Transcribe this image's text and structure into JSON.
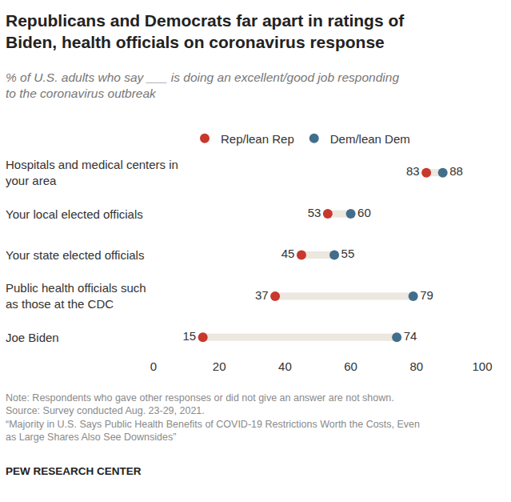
{
  "chart_data": {
    "type": "dot",
    "orientation": "horizontal",
    "title": "Republicans and Democrats far apart in ratings of\nBiden, health officials on coronavirus response",
    "subtitle": "% of U.S. adults who say ___ is doing an excellent/good job responding\nto the coronavirus outbreak",
    "categories": [
      "Hospitals and medical centers in\nyour area",
      "Your local elected officials",
      "Your state elected officials",
      "Public health officials such\nas those at the CDC",
      "Joe Biden"
    ],
    "series": [
      {
        "name": "Rep/lean Rep",
        "color": "#c8382c",
        "values": [
          83,
          53,
          45,
          37,
          15
        ]
      },
      {
        "name": "Dem/lean Dem",
        "color": "#426e8c",
        "values": [
          88,
          60,
          55,
          79,
          74
        ]
      }
    ],
    "xlim": [
      0,
      100
    ],
    "xticks": [
      0,
      20,
      40,
      60,
      80,
      100
    ],
    "grid": false,
    "data_labels": true,
    "legend": "top",
    "note": "Note: Respondents who gave other responses or did not give an answer are not shown.",
    "source": "Source: Survey conducted Aug. 23-29, 2021.",
    "report": "“Majority in U.S. Says Public Health Benefits of COVID-19 Restrictions Worth the Costs, Even\nas Large Shares Also See Downsides”",
    "credit": "PEW RESEARCH CENTER"
  }
}
